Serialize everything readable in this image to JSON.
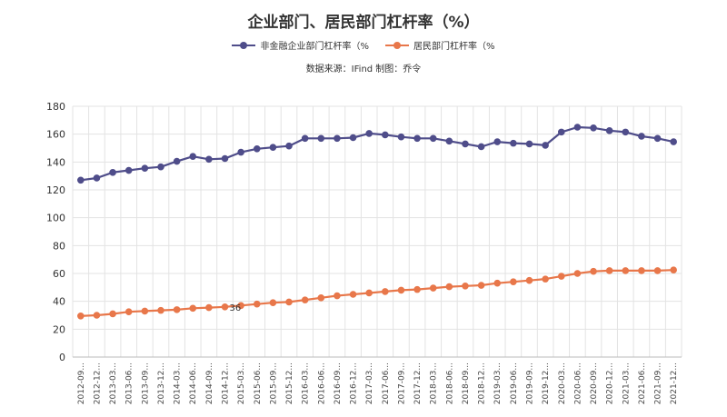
{
  "chart_data": {
    "type": "line",
    "title": "企业部门、居民部门杠杆率（%）",
    "subtitle": "数据来源：IFind 制图：乔令",
    "xlabel": "",
    "ylabel": "",
    "ylim": [
      0,
      180
    ],
    "yticks": [
      0,
      20,
      40,
      60,
      80,
      100,
      120,
      140,
      160,
      180
    ],
    "grid": true,
    "legend_position": "top-center",
    "categories": [
      "2012-09",
      "2012-12",
      "2013-03",
      "2013-06",
      "2013-09",
      "2013-12",
      "2014-03",
      "2014-06",
      "2014-09",
      "2014-12",
      "2015-03",
      "2015-06",
      "2015-09",
      "2015-12",
      "2016-03",
      "2016-06",
      "2016-09",
      "2016-12",
      "2017-03",
      "2017-06",
      "2017-09",
      "2017-12",
      "2018-03",
      "2018-06",
      "2018-09",
      "2018-12",
      "2019-03",
      "2019-06",
      "2019-09",
      "2019-12",
      "2020-03",
      "2020-06",
      "2020-09",
      "2020-12",
      "2021-03",
      "2021-06",
      "2021-09",
      "2021-12"
    ],
    "tick_labels": [
      "2012-09...",
      "2012-12...",
      "2013-03...",
      "2013-06...",
      "2013-09...",
      "2013-12...",
      "2014-03...",
      "2014-06...",
      "2014-09...",
      "2014-12...",
      "2015-03...",
      "2015-06...",
      "2015-09...",
      "2015-12...",
      "2016-03...",
      "2016-06...",
      "2016-09...",
      "2016-12...",
      "2017-03...",
      "2017-06...",
      "2017-09...",
      "2017-12...",
      "2018-03...",
      "2018-06...",
      "2018-09...",
      "2018-12...",
      "2019-03...",
      "2019-06...",
      "2019-09...",
      "2019-12...",
      "2020-03...",
      "2020-06...",
      "2020-09...",
      "2020-12...",
      "2021-03...",
      "2021-06...",
      "2021-09...",
      "2021-12..."
    ],
    "series": [
      {
        "name": "非金融企业部门杠杆率（%",
        "color": "#4f4d8a",
        "values": [
          127,
          128.5,
          132.5,
          134,
          135.5,
          136.5,
          140.5,
          144,
          142,
          142.5,
          147,
          149.5,
          150.5,
          151.5,
          157,
          157,
          157,
          157.5,
          160.5,
          159.5,
          158,
          157,
          157,
          155,
          153,
          151,
          154.5,
          153.5,
          153,
          152,
          161.5,
          165,
          164.5,
          162.5,
          161.5,
          158.5,
          157,
          154.5
        ]
      },
      {
        "name": "居民部门杠杆率（%",
        "color": "#e8774a",
        "values": [
          29.5,
          30,
          31,
          32.5,
          33,
          33.5,
          34,
          35,
          35.5,
          36,
          37,
          38,
          39,
          39.5,
          41,
          42.5,
          44,
          45,
          46,
          47,
          48,
          48.5,
          49.5,
          50.5,
          51,
          51.5,
          53,
          54,
          55,
          56,
          58,
          60,
          61.5,
          62,
          62,
          62,
          62,
          62.5
        ]
      }
    ],
    "annotations": [
      {
        "text": "36",
        "x": "2014-12",
        "y": 36
      }
    ]
  }
}
